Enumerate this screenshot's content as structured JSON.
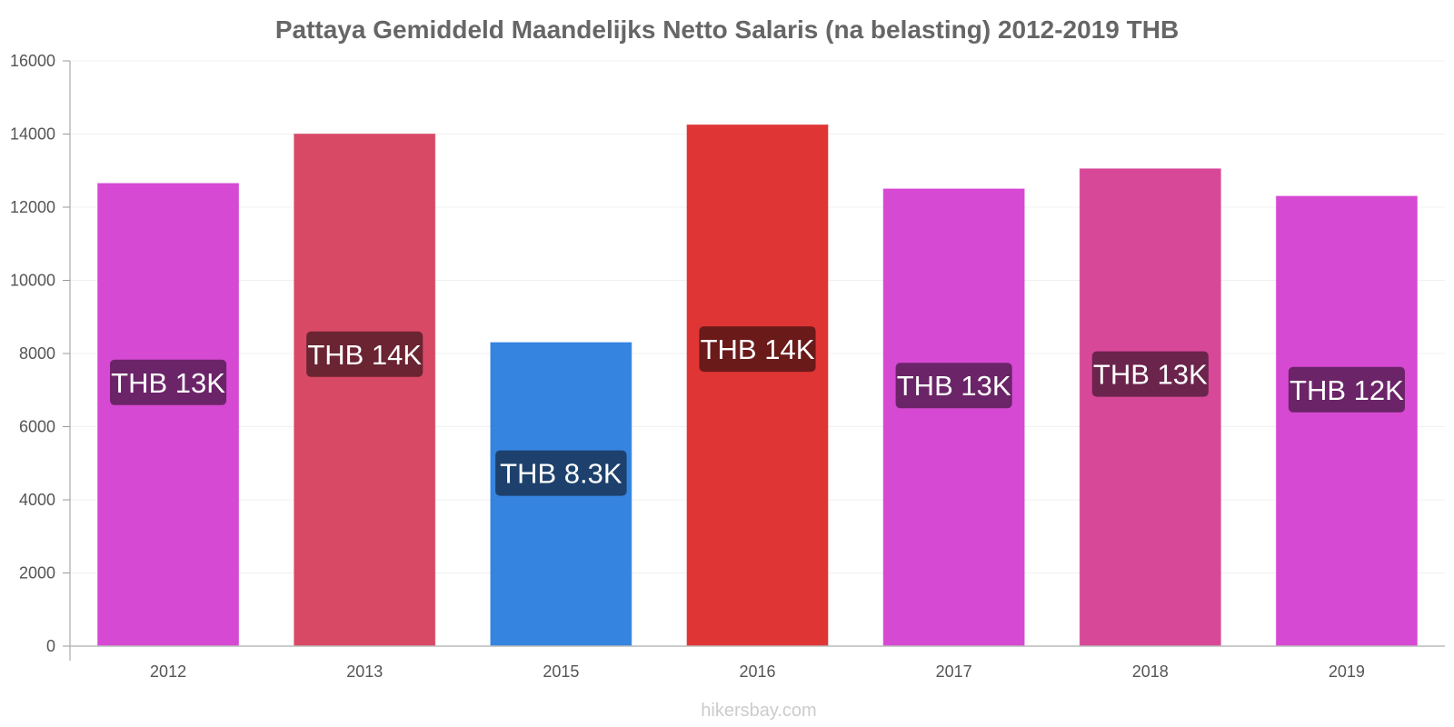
{
  "chart_data": {
    "type": "bar",
    "title": "Pattaya Gemiddeld Maandelijks Netto Salaris (na belasting) 2012-2019 THB",
    "xlabel": "",
    "ylabel": "",
    "categories": [
      "2012",
      "2013",
      "2015",
      "2016",
      "2017",
      "2018",
      "2019"
    ],
    "values": [
      12650,
      14000,
      8300,
      14250,
      12500,
      13050,
      12300
    ],
    "data_labels": [
      "THB 13K",
      "THB 14K",
      "THB 8.3K",
      "THB 14K",
      "THB 13K",
      "THB 13K",
      "THB 12K"
    ],
    "bar_colors": [
      "#d649d3",
      "#d84965",
      "#3584e0",
      "#e03535",
      "#d649d3",
      "#d84898",
      "#d649d3"
    ],
    "label_bg_colors": [
      "#6b2468",
      "#6b2432",
      "#1d416c",
      "#6b1a1a",
      "#6b2468",
      "#6b244c",
      "#6b2468"
    ],
    "ylim": [
      0,
      16000
    ],
    "yticks": [
      0,
      2000,
      4000,
      6000,
      8000,
      10000,
      12000,
      14000,
      16000
    ],
    "grid": true,
    "legend": "none"
  },
  "watermark": "hikersbay.com"
}
